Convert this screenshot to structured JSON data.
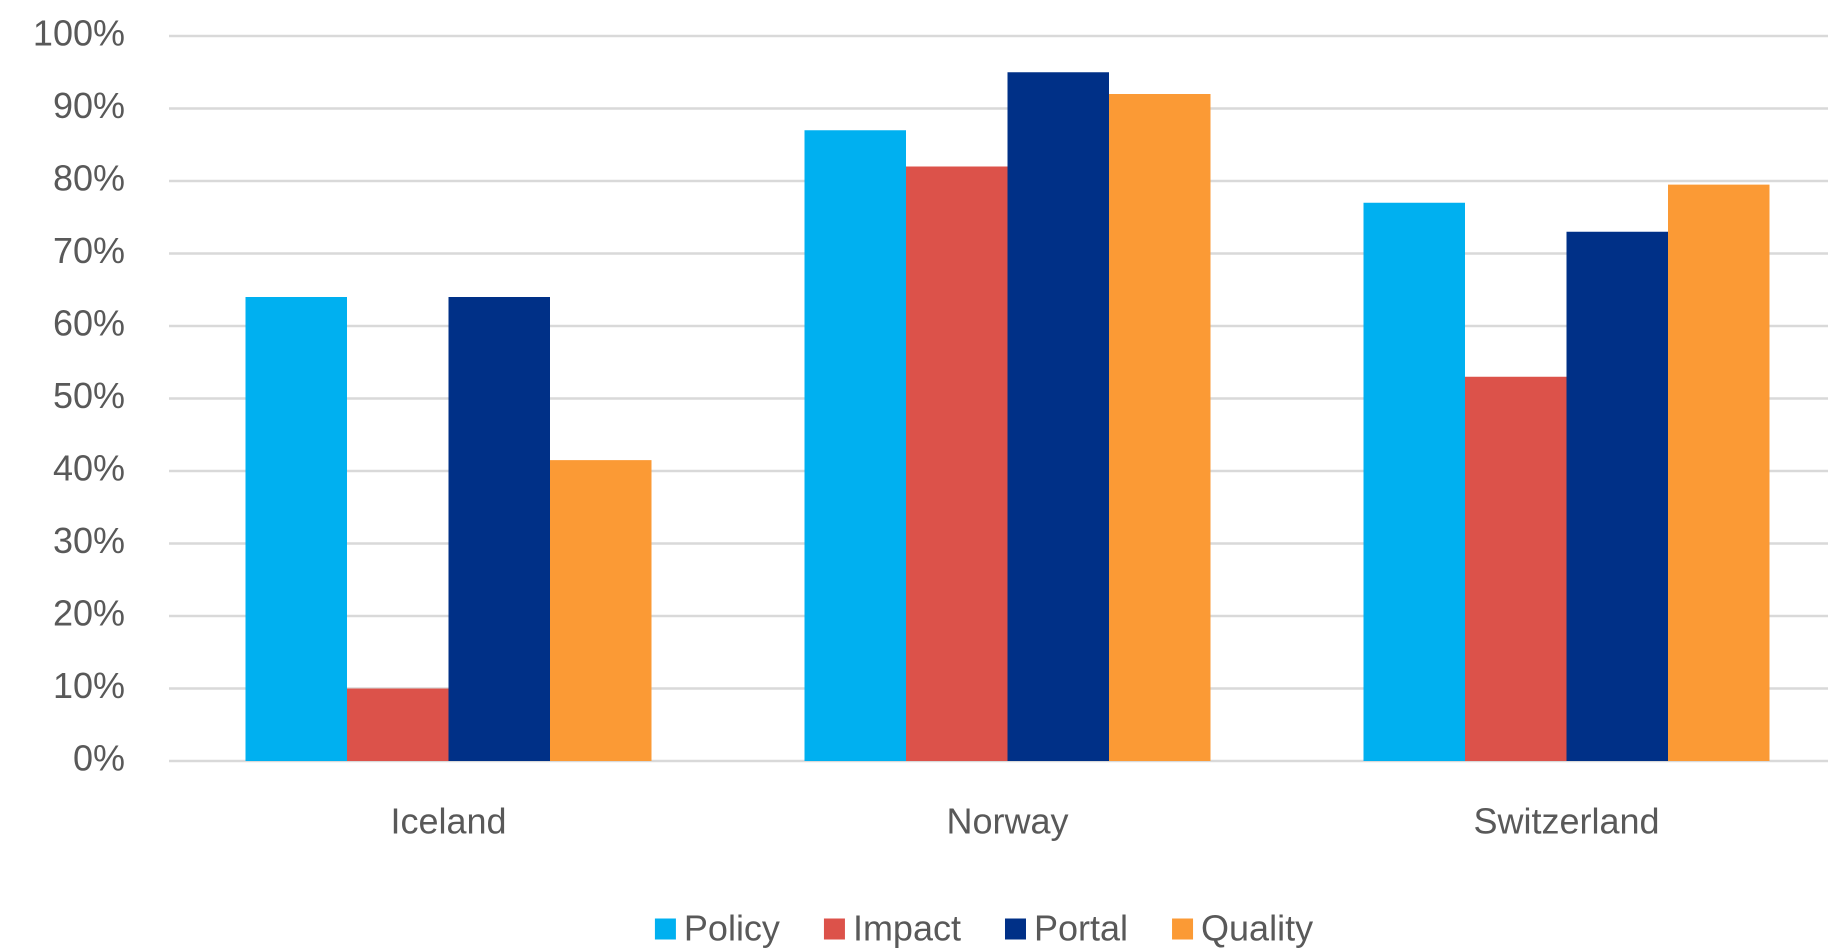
{
  "chart_data": {
    "type": "bar",
    "categories": [
      "Iceland",
      "Norway",
      "Switzerland"
    ],
    "series": [
      {
        "name": "Policy",
        "color": "#00b0f0",
        "values": [
          64,
          87,
          77
        ]
      },
      {
        "name": "Impact",
        "color": "#dc524a",
        "values": [
          10,
          82,
          53
        ]
      },
      {
        "name": "Portal",
        "color": "#003087",
        "values": [
          64,
          95,
          73
        ]
      },
      {
        "name": "Quality",
        "color": "#fb9a35",
        "values": [
          41.5,
          92,
          79.5
        ]
      }
    ],
    "ylim": [
      0,
      100
    ],
    "yticks": [
      {
        "value": 0,
        "label": "0%"
      },
      {
        "value": 10,
        "label": "10%"
      },
      {
        "value": 20,
        "label": "20%"
      },
      {
        "value": 30,
        "label": "30%"
      },
      {
        "value": 40,
        "label": "40%"
      },
      {
        "value": 50,
        "label": "50%"
      },
      {
        "value": 60,
        "label": "60%"
      },
      {
        "value": 70,
        "label": "70%"
      },
      {
        "value": 80,
        "label": "80%"
      },
      {
        "value": 90,
        "label": "90%"
      },
      {
        "value": 100,
        "label": "100%"
      }
    ],
    "grid": true,
    "legend": "bottom"
  }
}
